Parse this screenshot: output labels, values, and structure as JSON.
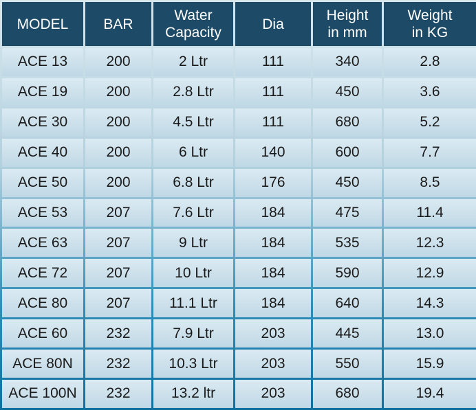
{
  "table": {
    "headers": [
      {
        "line1": "MODEL",
        "line2": ""
      },
      {
        "line1": "BAR",
        "line2": ""
      },
      {
        "line1": "Water",
        "line2": "Capacity"
      },
      {
        "line1": "Dia",
        "line2": ""
      },
      {
        "line1": "Height",
        "line2": "in mm"
      },
      {
        "line1": "Weight",
        "line2": "in KG"
      }
    ],
    "rows": [
      [
        "ACE 13",
        "200",
        "2 Ltr",
        "111",
        "340",
        "2.8"
      ],
      [
        "ACE 19",
        "200",
        "2.8 Ltr",
        "111",
        "450",
        "3.6"
      ],
      [
        "ACE 30",
        "200",
        "4.5 Ltr",
        "111",
        "680",
        "5.2"
      ],
      [
        "ACE 40",
        "200",
        "6 Ltr",
        "140",
        "600",
        "7.7"
      ],
      [
        "ACE 50",
        "200",
        "6.8 Ltr",
        "176",
        "450",
        "8.5"
      ],
      [
        "ACE 53",
        "207",
        "7.6 Ltr",
        "184",
        "475",
        "11.4"
      ],
      [
        "ACE 63",
        "207",
        "9 Ltr",
        "184",
        "535",
        "12.3"
      ],
      [
        "ACE 72",
        "207",
        "10 Ltr",
        "184",
        "590",
        "12.9"
      ],
      [
        "ACE 80",
        "207",
        "11.1 Ltr",
        "184",
        "640",
        "14.3"
      ],
      [
        "ACE 60",
        "232",
        "7.9 Ltr",
        "203",
        "445",
        "13.0"
      ],
      [
        "ACE 80N",
        "232",
        "10.3 Ltr",
        "203",
        "550",
        "15.9"
      ],
      [
        "ACE 100N",
        "232",
        "13.2 ltr",
        "203",
        "680",
        "19.4"
      ]
    ]
  },
  "colors": {
    "header_bg": "#1d4a66",
    "header_text": "#ffffff",
    "cell_bg": "#cfe2ec",
    "cell_text": "#1a1a1a"
  }
}
